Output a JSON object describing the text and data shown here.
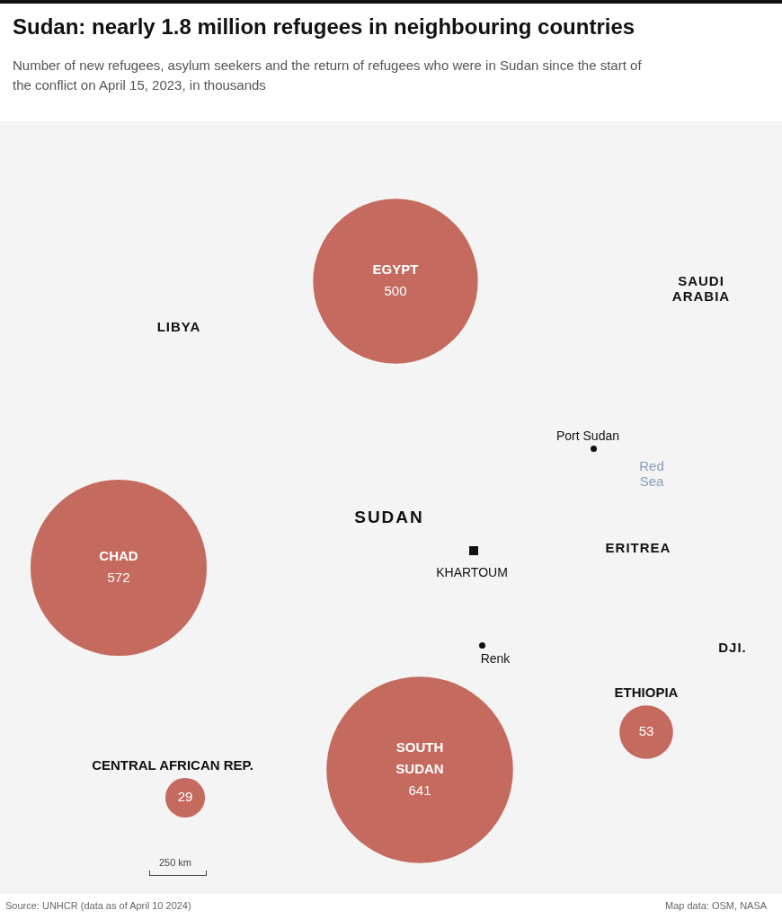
{
  "chart_data": {
    "type": "other",
    "title": "Sudan: nearly 1.8 million refugees in neighbouring countries",
    "subtitle": "Number of new refugees,  asylum seekers and the return of refugees who were in Sudan since the start of the conflict on April 15, 2023, in thousands",
    "categories": [
      "EGYPT",
      "CHAD",
      "SOUTH SUDAN",
      "ETHIOPIA",
      "CENTRAL AFRICAN REP."
    ],
    "values": [
      500,
      572,
      641,
      53,
      29
    ],
    "color": "#c46a5e",
    "data_labels": true,
    "annotations": [
      "LIBYA",
      "SAUDI ARABIA",
      "SUDAN",
      "Port Sudan",
      "Red Sea",
      "ERITREA",
      "KHARTOUM",
      "Renk",
      "DJI.",
      "250 km",
      "Source: UNHCR (data as of April 10 2024)",
      "Map data: OSM, NASA"
    ]
  }
}
